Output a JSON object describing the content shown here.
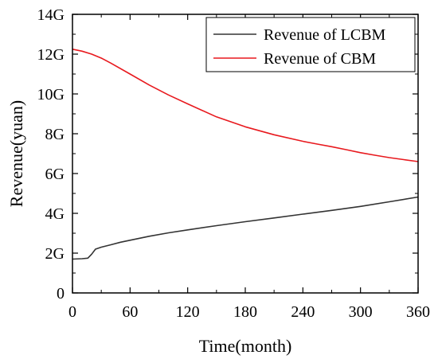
{
  "chart_data": {
    "type": "line",
    "title": "",
    "xlabel": "Time(month)",
    "ylabel": "Revenue(yuan)",
    "xlim": [
      0,
      360
    ],
    "ylim": [
      0,
      14
    ],
    "x_ticks": [
      0,
      60,
      120,
      180,
      240,
      300,
      360
    ],
    "x_tick_labels": [
      "0",
      "60",
      "120",
      "180",
      "240",
      "300",
      "360"
    ],
    "y_ticks": [
      0,
      2,
      4,
      6,
      8,
      10,
      12,
      14
    ],
    "y_tick_labels": [
      "0",
      "2G",
      "4G",
      "6G",
      "8G",
      "10G",
      "12G",
      "14G"
    ],
    "y_unit": "G",
    "grid": false,
    "legend_position": "top-right",
    "series": [
      {
        "name": "Revenue of LCBM",
        "color": "#333333",
        "x": [
          0,
          10,
          16,
          20,
          24,
          30,
          40,
          50,
          60,
          80,
          100,
          120,
          150,
          180,
          210,
          240,
          270,
          300,
          330,
          360
        ],
        "y": [
          1.7,
          1.72,
          1.75,
          1.95,
          2.2,
          2.3,
          2.42,
          2.55,
          2.65,
          2.85,
          3.02,
          3.17,
          3.38,
          3.58,
          3.77,
          3.96,
          4.15,
          4.35,
          4.58,
          4.82
        ]
      },
      {
        "name": "Revenue of CBM",
        "color": "#e8191e",
        "x": [
          0,
          10,
          20,
          30,
          40,
          60,
          80,
          100,
          120,
          150,
          180,
          210,
          240,
          255,
          270,
          285,
          300,
          315,
          330,
          345,
          360
        ],
        "y": [
          12.25,
          12.15,
          12.0,
          11.8,
          11.55,
          11.0,
          10.45,
          9.95,
          9.5,
          8.85,
          8.35,
          7.95,
          7.62,
          7.48,
          7.35,
          7.2,
          7.05,
          6.92,
          6.8,
          6.7,
          6.6
        ]
      }
    ]
  }
}
